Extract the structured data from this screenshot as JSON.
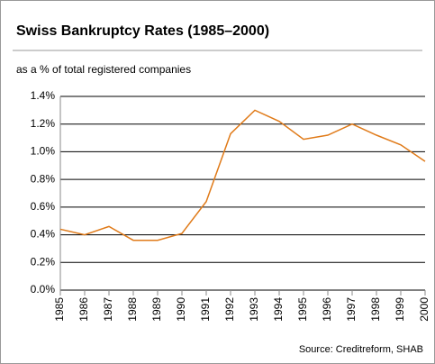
{
  "chart_data": {
    "type": "line",
    "title": "Swiss Bankruptcy Rates (1985–2000)",
    "subtitle": "as a % of total registered companies",
    "source": "Source: Creditreform, SHAB",
    "categories": [
      "1985",
      "1986",
      "1987",
      "1988",
      "1989",
      "1990",
      "1991",
      "1992",
      "1993",
      "1994",
      "1995",
      "1996",
      "1997",
      "1998",
      "1999",
      "2000"
    ],
    "values": [
      0.44,
      0.4,
      0.46,
      0.36,
      0.36,
      0.41,
      0.64,
      1.13,
      1.3,
      1.22,
      1.09,
      1.12,
      1.2,
      1.12,
      1.05,
      0.93
    ],
    "color": "#e07b1a",
    "ylim": [
      0,
      1.4
    ],
    "yticks": [
      {
        "value": 0,
        "label": "0.0%"
      },
      {
        "value": 0.2,
        "label": "0.2%"
      },
      {
        "value": 0.4,
        "label": "0.4%"
      },
      {
        "value": 0.6,
        "label": "0.6%"
      },
      {
        "value": 0.8,
        "label": "0.8%"
      },
      {
        "value": 1.0,
        "label": "1.0%"
      },
      {
        "value": 1.2,
        "label": "1.2%"
      },
      {
        "value": 1.4,
        "label": "1.4%"
      }
    ],
    "grid": true
  }
}
